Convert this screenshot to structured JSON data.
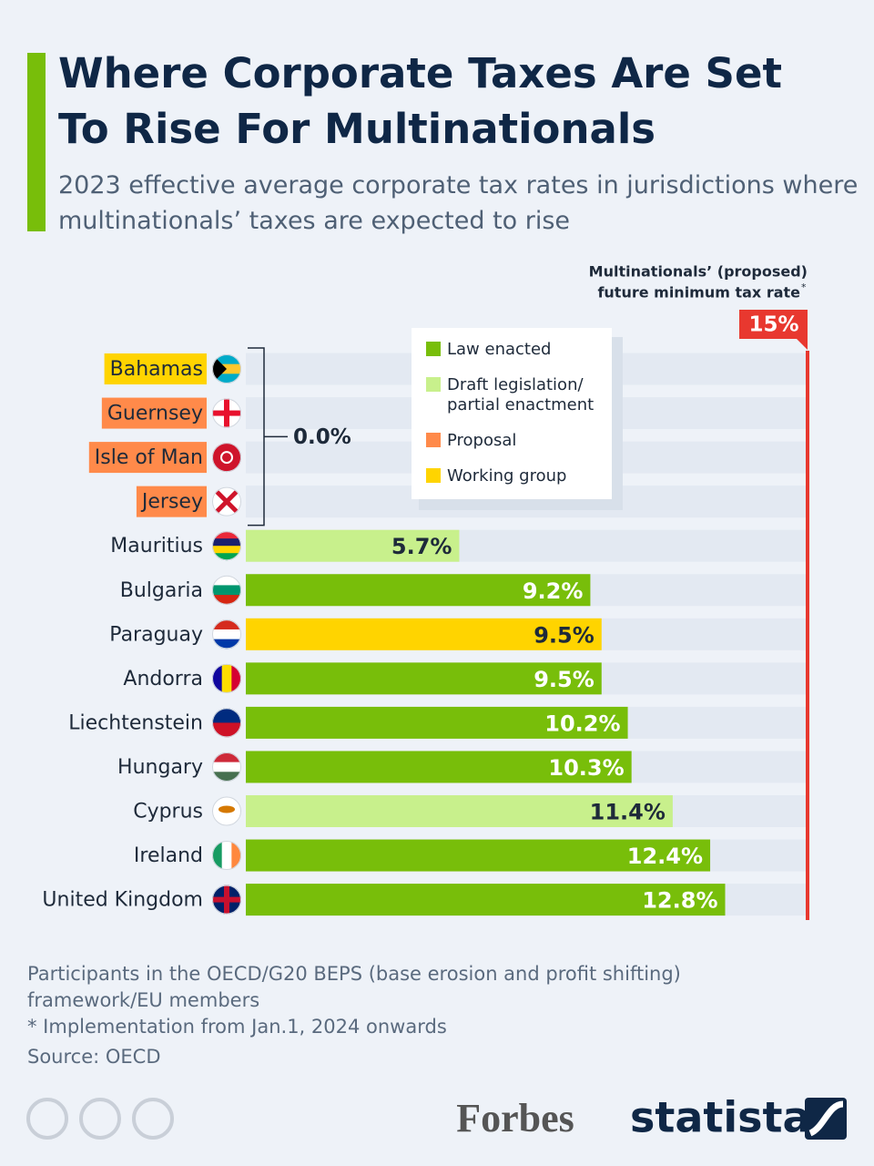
{
  "chart_data": {
    "type": "bar",
    "orientation": "horizontal",
    "title": "Where Corporate Taxes Are Set To Rise For Multinationals",
    "subtitle": "2023 effective average corporate tax rates in jurisdictions where multinationals’ taxes are expected to rise",
    "categories": [
      "Bahamas",
      "Guernsey",
      "Isle of Man",
      "Jersey",
      "Mauritius",
      "Bulgaria",
      "Paraguay",
      "Andorra",
      "Liechtenstein",
      "Hungary",
      "Cyprus",
      "Ireland",
      "United Kingdom"
    ],
    "series": [
      {
        "name": "Law enacted",
        "color": "#78be0a",
        "values": [
          null,
          null,
          null,
          null,
          null,
          9.2,
          null,
          9.5,
          10.2,
          10.3,
          null,
          12.4,
          12.8
        ],
        "value_labels": [
          null,
          null,
          null,
          null,
          null,
          "9.2%",
          null,
          "9.5%",
          "10.2%",
          "10.3%",
          null,
          "12.4%",
          "12.8%"
        ]
      },
      {
        "name": "Draft legislation/ partial enactment",
        "color": "#c8f08c",
        "values": [
          null,
          null,
          null,
          null,
          5.7,
          null,
          null,
          null,
          null,
          null,
          11.4,
          null,
          null
        ],
        "value_labels": [
          null,
          null,
          null,
          null,
          "5.7%",
          null,
          null,
          null,
          null,
          null,
          "11.4%",
          null,
          null
        ]
      },
      {
        "name": "Proposal",
        "color": "#ff8a4a",
        "values": [
          null,
          0,
          0,
          0,
          null,
          null,
          null,
          null,
          null,
          null,
          null,
          null,
          null
        ],
        "value_labels": [
          null,
          null,
          null,
          null,
          null,
          null,
          null,
          null,
          null,
          null,
          null,
          null,
          null
        ]
      },
      {
        "name": "Working group",
        "color": "#ffd400",
        "values": [
          0,
          null,
          null,
          null,
          null,
          null,
          9.5,
          null,
          null,
          null,
          null,
          null,
          null
        ],
        "value_labels": [
          null,
          null,
          null,
          null,
          null,
          null,
          "9.5%",
          null,
          null,
          null,
          null,
          null,
          null
        ]
      }
    ],
    "group_label": "0.0%",
    "xlim": [
      0,
      15
    ],
    "reference_line": {
      "value": 15,
      "label": "15%",
      "color": "#e8382f",
      "note": [
        "Multinationals’ (proposed)",
        "future minimum tax rate"
      ],
      "note_mark": "*"
    },
    "notes": [
      "Participants in the OECD/G20 BEPS (base erosion and profit shifting) framework/EU members",
      "* Implementation from Jan.1, 2024 onwards",
      "Source: OECD"
    ],
    "brands": [
      "Forbes",
      "statista"
    ]
  }
}
